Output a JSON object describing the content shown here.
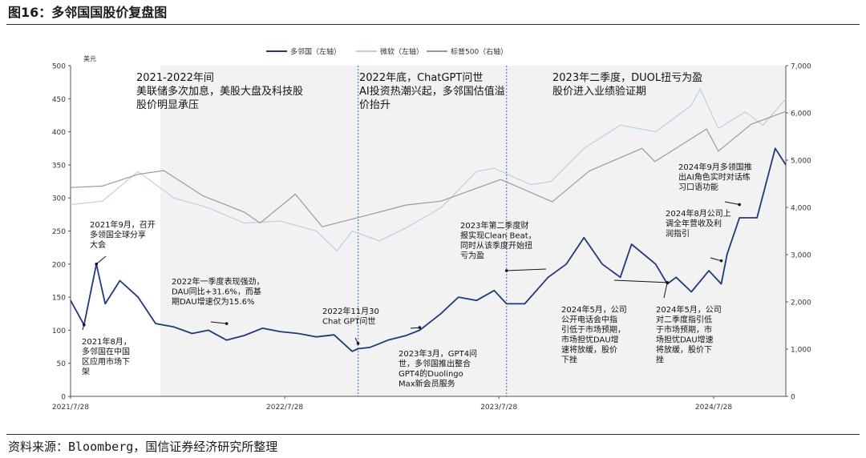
{
  "figure_title": "图16：多邻国国股价复盘图",
  "source": "资料来源：Bloomberg，国信证券经济研究所整理",
  "colors": {
    "duol": "#1f3a7a",
    "msft": "#b8cfe8",
    "spx": "#9a9a9a",
    "shade": "#f2f2f2",
    "divider": "#5b8fd4"
  },
  "chart_data": {
    "type": "line",
    "title": "",
    "left_axis": {
      "unit": "美元",
      "min": 0,
      "max": 500,
      "ticks": [
        "0",
        "50",
        "100",
        "150",
        "200",
        "250",
        "300",
        "350",
        "400",
        "450",
        "500"
      ]
    },
    "right_axis": {
      "min": 0,
      "max": 7000,
      "ticks": [
        "0",
        "1,000",
        "2,000",
        "3,000",
        "4,000",
        "5,000",
        "6,000",
        "7,000"
      ]
    },
    "x_ticks": [
      "2021/7/28",
      "2022/7/28",
      "2023/7/28",
      "2024/7/28"
    ],
    "legend": [
      "多邻国（左轴）",
      "微软（左轴）",
      "标普500（右轴）"
    ],
    "series": [
      {
        "name": "多邻国（左轴）",
        "axis": "left",
        "x": [
          "2021-07-28",
          "2021-08-20",
          "2021-09-10",
          "2021-09-25",
          "2021-10-20",
          "2021-11-20",
          "2021-12-20",
          "2022-01-20",
          "2022-02-20",
          "2022-03-20",
          "2022-04-20",
          "2022-05-20",
          "2022-06-20",
          "2022-07-20",
          "2022-08-20",
          "2022-09-20",
          "2022-10-20",
          "2022-11-20",
          "2022-11-30",
          "2022-12-20",
          "2023-01-20",
          "2023-02-20",
          "2023-03-15",
          "2023-04-20",
          "2023-05-20",
          "2023-06-20",
          "2023-07-20",
          "2023-08-10",
          "2023-09-10",
          "2023-10-20",
          "2023-11-20",
          "2023-12-20",
          "2024-01-20",
          "2024-02-20",
          "2024-03-10",
          "2024-04-20",
          "2024-05-10",
          "2024-05-25",
          "2024-06-20",
          "2024-07-20",
          "2024-08-10",
          "2024-08-20",
          "2024-09-10",
          "2024-10-10",
          "2024-11-10",
          "2024-11-28"
        ],
        "values": [
          145,
          108,
          200,
          140,
          175,
          150,
          110,
          105,
          95,
          100,
          85,
          92,
          103,
          98,
          95,
          90,
          93,
          68,
          72,
          74,
          85,
          92,
          100,
          125,
          150,
          145,
          160,
          140,
          140,
          180,
          200,
          240,
          200,
          180,
          230,
          200,
          170,
          180,
          158,
          190,
          170,
          215,
          270,
          270,
          375,
          350
        ]
      },
      {
        "name": "微软（左轴）",
        "axis": "left",
        "x": [
          "2021-07-28",
          "2021-09-20",
          "2021-11-20",
          "2022-01-20",
          "2022-03-20",
          "2022-05-20",
          "2022-07-20",
          "2022-09-20",
          "2022-10-25",
          "2022-11-20",
          "2023-01-05",
          "2023-02-20",
          "2023-04-20",
          "2023-06-20",
          "2023-07-20",
          "2023-09-20",
          "2023-10-25",
          "2023-12-20",
          "2024-02-20",
          "2024-04-20",
          "2024-06-20",
          "2024-07-05",
          "2024-08-05",
          "2024-09-20",
          "2024-10-20",
          "2024-11-28"
        ],
        "values": [
          290,
          295,
          340,
          300,
          285,
          262,
          265,
          250,
          220,
          250,
          235,
          255,
          285,
          340,
          345,
          320,
          325,
          375,
          410,
          400,
          440,
          465,
          405,
          430,
          410,
          450
        ]
      },
      {
        "name": "标普500（右轴）",
        "axis": "right",
        "x": [
          "2021-07-28",
          "2021-09-20",
          "2021-11-20",
          "2022-01-03",
          "2022-03-10",
          "2022-05-20",
          "2022-06-16",
          "2022-08-15",
          "2022-09-30",
          "2022-12-20",
          "2023-02-20",
          "2023-04-20",
          "2023-07-31",
          "2023-10-27",
          "2023-12-29",
          "2024-03-28",
          "2024-04-19",
          "2024-07-16",
          "2024-08-05",
          "2024-09-30",
          "2024-11-28"
        ],
        "values": [
          4420,
          4450,
          4700,
          4780,
          4250,
          3900,
          3670,
          4280,
          3590,
          3850,
          4050,
          4130,
          4590,
          4120,
          4770,
          5250,
          4970,
          5660,
          5190,
          5760,
          6030
        ]
      }
    ],
    "phases": [
      {
        "label_lines": [
          "2021-2022年间",
          "美联储多次加息，美股大盘及科技股",
          "股价明显承压"
        ]
      },
      {
        "label_lines": [
          "2022年底，ChatGPT问世",
          "AI投资热潮兴起，多邻国估值溢",
          "价抬升"
        ]
      },
      {
        "label_lines": [
          "2023年二季度，DUOL扭亏为盈",
          "股价进入业绩验证期"
        ]
      }
    ],
    "annotations": [
      {
        "date": "2021-08-20",
        "value": 108,
        "lines": [
          "2021年8月，",
          "多邻国在中国",
          "区应用市场下",
          "架"
        ]
      },
      {
        "date": "2021-09-10",
        "value": 200,
        "lines": [
          "2021年9月，召开",
          "多领国全球分享",
          "大会"
        ]
      },
      {
        "date": "2022-04-20",
        "value": 110,
        "lines": [
          "2022年一季度表现强劲，",
          "DAU同比+31.6%，而基",
          "期DAU增速仅为15.6%"
        ]
      },
      {
        "date": "2022-11-30",
        "value": 80,
        "lines": [
          "2022年11月30",
          "Chat GPT问世"
        ]
      },
      {
        "date": "2023-03-15",
        "value": 104,
        "lines": [
          "2023年3月，GPT4问",
          "世，多邻国推出整合",
          "GPT4的Duolingo",
          "Max新会员服务"
        ]
      },
      {
        "date": "2023-08-10",
        "value": 190,
        "lines": [
          "2023年第二季度财",
          "报实现Clean Beat，",
          "同时从该季度开始扭",
          "亏为盈"
        ]
      },
      {
        "date": "2024-05-10",
        "value": 172,
        "lines": [
          "2024年5月，公司",
          "公开电话会中指",
          "引低于市场预期，",
          "市场担忧DAU增",
          "速将放缓，股价",
          "下挫"
        ]
      },
      {
        "date": "2024-05-10",
        "value": 172,
        "lines": [
          "2024年5月，公司",
          "对二季度指引低",
          "于市场预期，市",
          "场担忧DAU增速",
          "将放缓，股价下",
          "挫"
        ]
      },
      {
        "date": "2024-08-10",
        "value": 205,
        "lines": [
          "2024年8月公司上",
          "调全年营收及利",
          "润指引"
        ]
      },
      {
        "date": "2024-09-10",
        "value": 290,
        "lines": [
          "2024年9月多领国推",
          "出AI角色实时对话练",
          "习口语功能"
        ]
      }
    ]
  }
}
